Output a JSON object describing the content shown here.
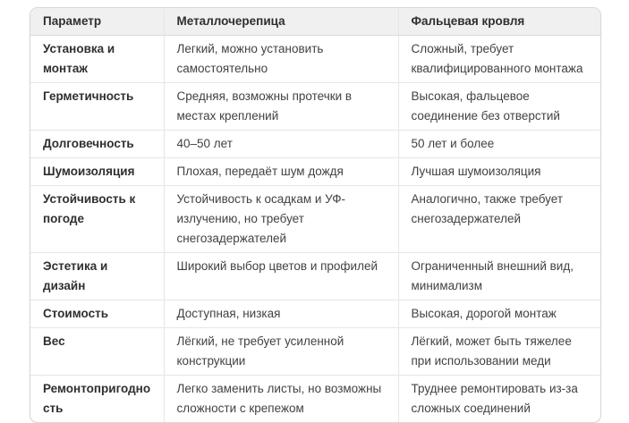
{
  "table": {
    "columns": [
      "Параметр",
      "Металлочерепица",
      "Фальцевая кровля"
    ],
    "rows": [
      {
        "param": "Установка и монтаж",
        "metal_tile": "Легкий, можно установить самостоятельно",
        "seam_roof": "Сложный, требует квалифицированного монтажа"
      },
      {
        "param": "Герметичность",
        "metal_tile": "Средняя, возможны протечки в местах креплений",
        "seam_roof": "Высокая, фальцевое соединение без отверстий"
      },
      {
        "param": "Долговечность",
        "metal_tile": "40–50 лет",
        "seam_roof": "50 лет и более"
      },
      {
        "param": "Шумоизоляция",
        "metal_tile": "Плохая, передаёт шум дождя",
        "seam_roof": "Лучшая шумоизоляция"
      },
      {
        "param": "Устойчивость к погоде",
        "metal_tile": "Устойчивость к осадкам и УФ-излучению, но требует снегозадержателей",
        "seam_roof": "Аналогично, также требует снегозадержателей"
      },
      {
        "param": "Эстетика и дизайн",
        "metal_tile": "Широкий выбор цветов и профилей",
        "seam_roof": "Ограниченный внешний вид, минимализм"
      },
      {
        "param": "Стоимость",
        "metal_tile": "Доступная, низкая",
        "seam_roof": "Высокая, дорогой монтаж"
      },
      {
        "param": "Вес",
        "metal_tile": "Лёгкий, не требует усиленной конструкции",
        "seam_roof": "Лёгкий, может быть тяжелее при использовании меди"
      },
      {
        "param": "Ремонтопригодность",
        "metal_tile": "Легко заменить листы, но возможны сложности с крепежом",
        "seam_roof": "Труднее ремонтировать из-за сложных соединений"
      }
    ]
  },
  "colors": {
    "header_bg": "#f0f0f0",
    "outer_border": "#d7d7d7",
    "inner_border": "#e6e6e6",
    "heading_text": "#2f2f2f",
    "body_text": "#424242",
    "page_bg": "#ffffff"
  }
}
